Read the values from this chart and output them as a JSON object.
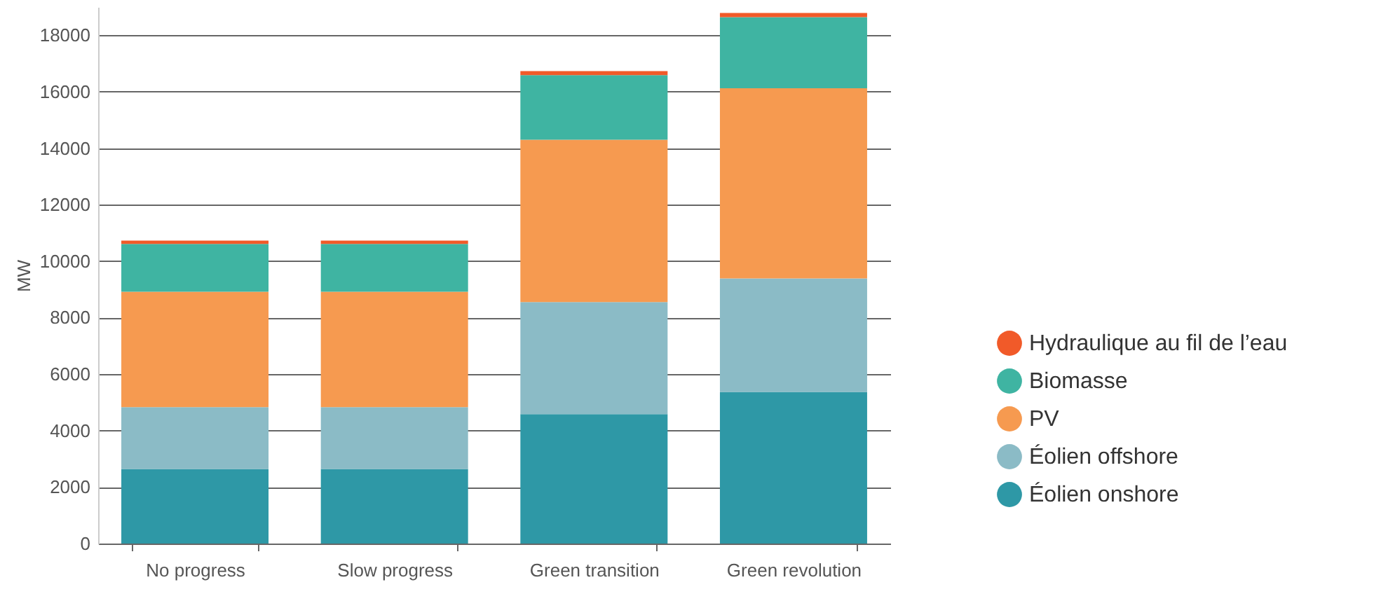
{
  "chart_data": {
    "type": "bar",
    "stacked": true,
    "ylabel": "MW",
    "categories": [
      "No progress",
      "Slow progress",
      "Green transition",
      "Green revolution"
    ],
    "series": [
      {
        "name": "Éolien onshore",
        "color": "#2e98a6",
        "values": [
          2640,
          2640,
          4580,
          5370
        ]
      },
      {
        "name": "Éolien offshore",
        "color": "#8bbbc6",
        "values": [
          2190,
          2190,
          3970,
          4020
        ]
      },
      {
        "name": "PV",
        "color": "#f69a50",
        "values": [
          4090,
          4090,
          5750,
          6730
        ]
      },
      {
        "name": "Biomasse",
        "color": "#3fb4a2",
        "values": [
          1690,
          1690,
          2290,
          2520
        ]
      },
      {
        "name": "Hydraulique au fil de l’eau",
        "color": "#f15a29",
        "values": [
          120,
          120,
          140,
          150
        ]
      }
    ],
    "ylim": [
      0,
      19000
    ],
    "yticks": [
      0,
      2000,
      4000,
      6000,
      8000,
      10000,
      12000,
      14000,
      16000,
      18000
    ],
    "grid": "y",
    "legend": "right"
  }
}
